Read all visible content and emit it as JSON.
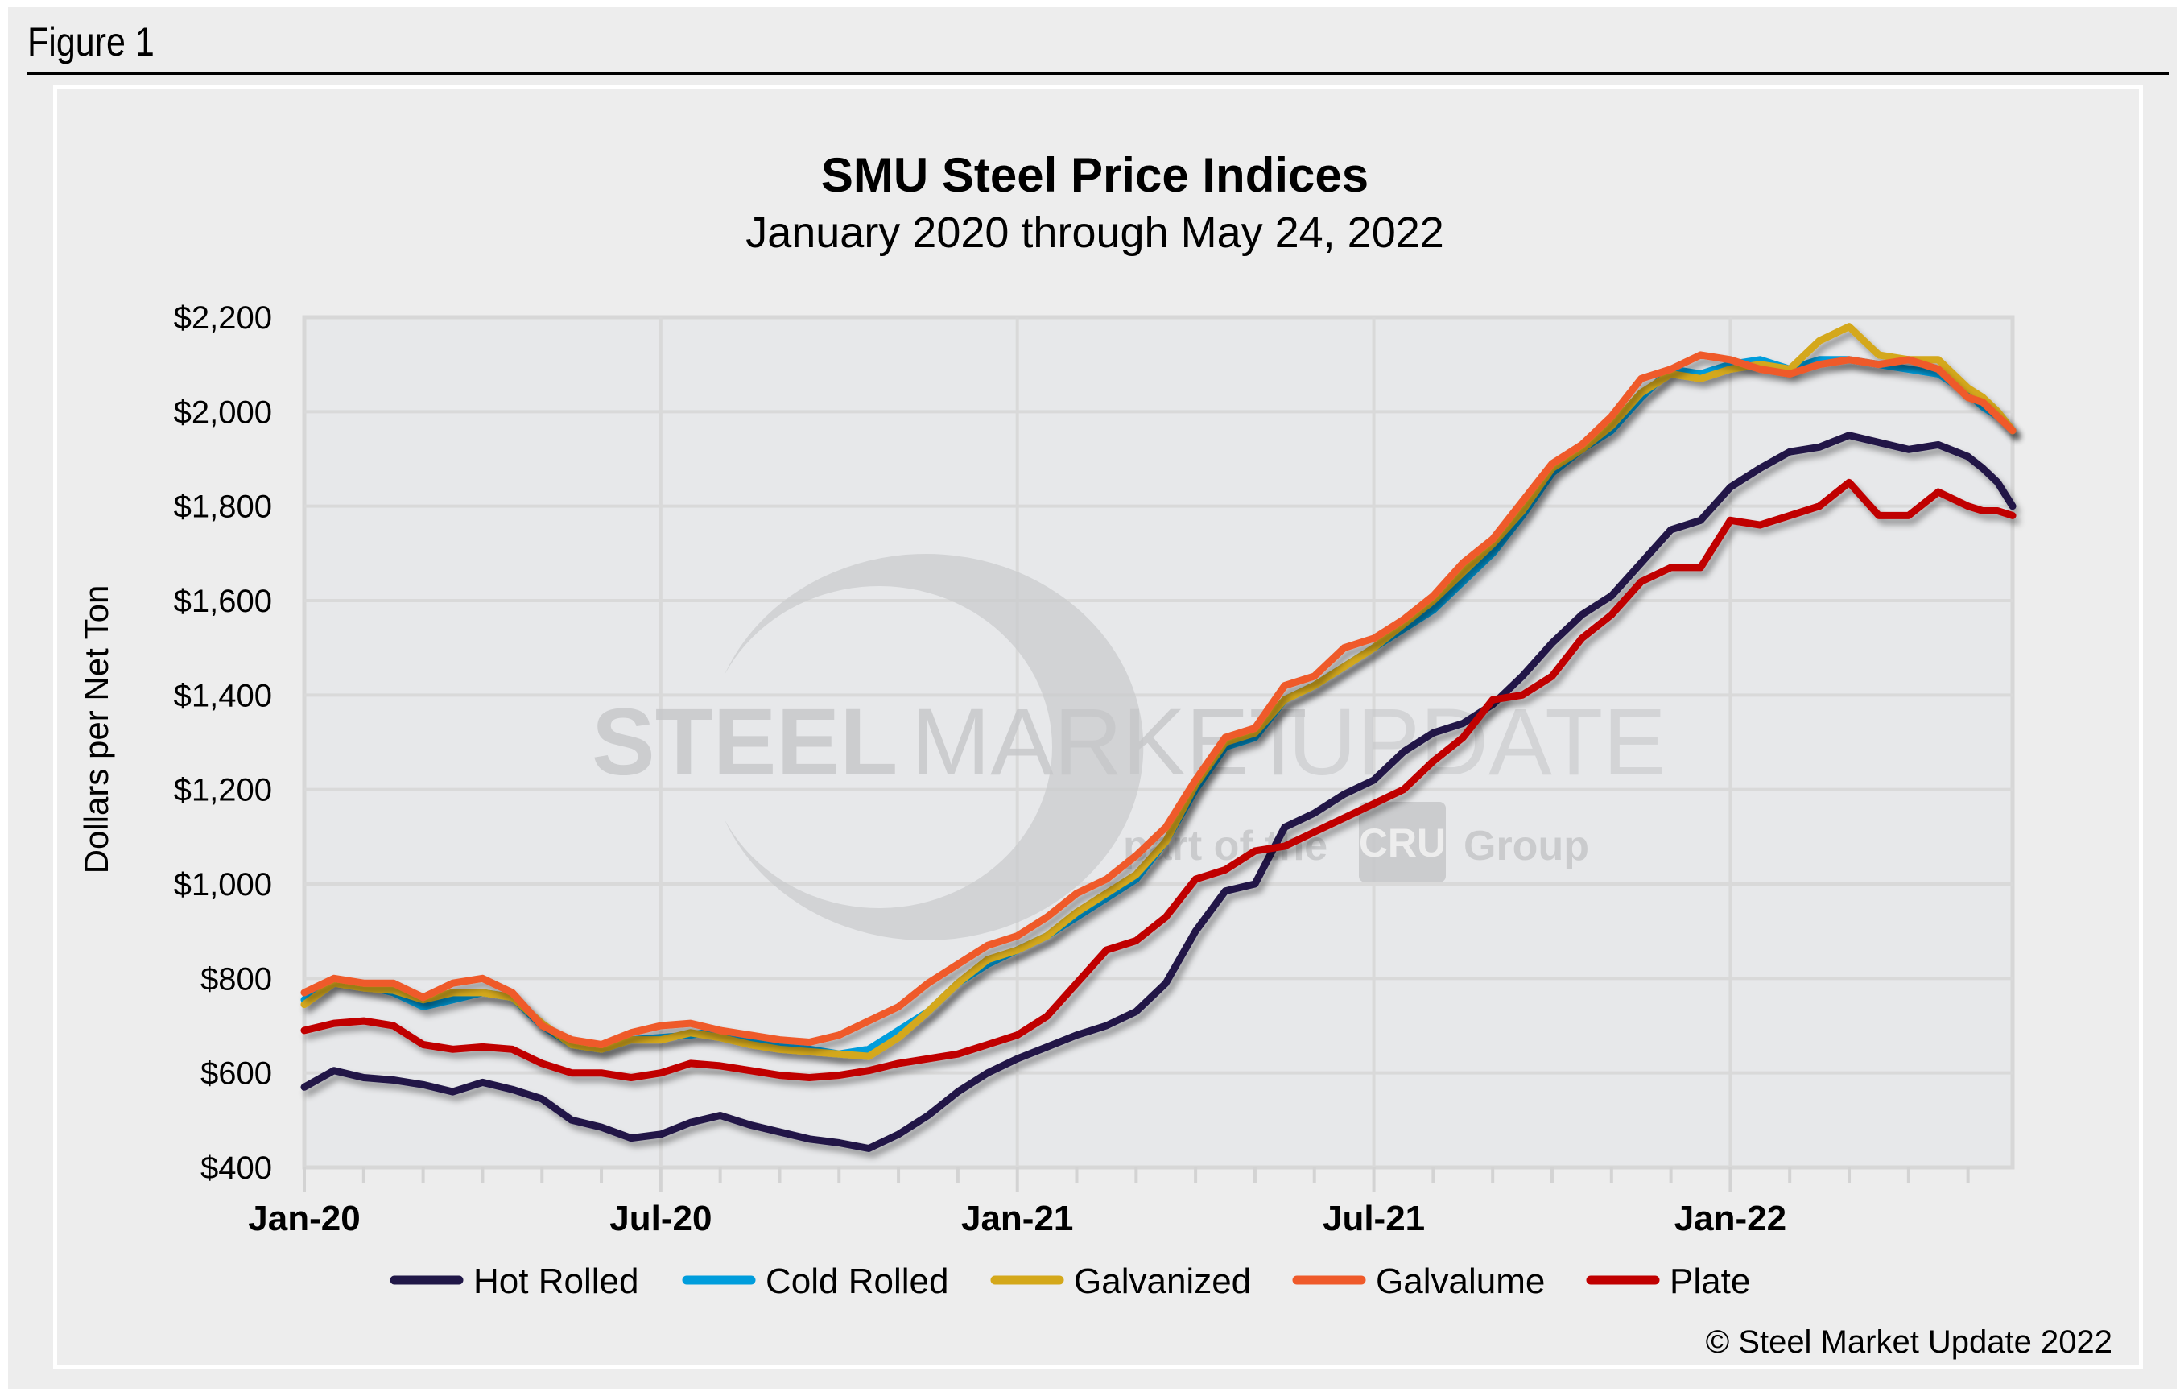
{
  "figure_label": "Figure 1",
  "watermark": {
    "brand_bold": "STEEL",
    "brand_mid": "MARKET",
    "brand_light": "UPDATE",
    "tagline_pre": "part of the",
    "tagline_logo": "CRU",
    "tagline_post": "Group"
  },
  "copyright": "© Steel Market Update 2022",
  "chart_data": {
    "type": "line",
    "title": "SMU Steel Price Indices",
    "subtitle": "January 2020 through May 24, 2022",
    "xlabel": "",
    "ylabel": "Dollars per Net Ton",
    "x_unit": "months since Jan 2020",
    "xlim": [
      0,
      28.75
    ],
    "ylim": [
      400,
      2200
    ],
    "y_ticks": [
      400,
      600,
      800,
      1000,
      1200,
      1400,
      1600,
      1800,
      2000,
      2200
    ],
    "y_tick_labels": [
      "$400",
      "$600",
      "$800",
      "$1,000",
      "$1,200",
      "$1,400",
      "$1,600",
      "$1,800",
      "$2,000",
      "$2,200"
    ],
    "x_major_ticks": [
      0,
      6,
      12,
      18,
      24
    ],
    "x_tick_labels": [
      "Jan-20",
      "Jul-20",
      "Jan-21",
      "Jul-21",
      "Jan-22"
    ],
    "x_minor_ticks": [
      1,
      2,
      3,
      4,
      5,
      7,
      8,
      9,
      10,
      11,
      13,
      14,
      15,
      16,
      17,
      19,
      20,
      21,
      22,
      23,
      25,
      26,
      27,
      28
    ],
    "grid": true,
    "legend_position": "bottom",
    "x": [
      0,
      0.5,
      1,
      1.5,
      2,
      2.5,
      3,
      3.5,
      4,
      4.5,
      5,
      5.5,
      6,
      6.5,
      7,
      7.5,
      8,
      8.5,
      9,
      9.5,
      10,
      10.5,
      11,
      11.5,
      12,
      12.5,
      13,
      13.5,
      14,
      14.5,
      15,
      15.5,
      16,
      16.5,
      17,
      17.5,
      18,
      18.5,
      19,
      19.5,
      20,
      20.5,
      21,
      21.5,
      22,
      22.5,
      23,
      23.5,
      24,
      24.5,
      25,
      25.5,
      26,
      26.5,
      27,
      27.5,
      28,
      28.25,
      28.5,
      28.75
    ],
    "series": [
      {
        "name": "Hot Rolled",
        "color": "#201747",
        "values": [
          570,
          605,
          590,
          585,
          575,
          560,
          580,
          565,
          545,
          500,
          485,
          462,
          470,
          495,
          510,
          490,
          475,
          460,
          452,
          440,
          470,
          510,
          560,
          600,
          630,
          655,
          680,
          700,
          730,
          790,
          900,
          985,
          1000,
          1120,
          1150,
          1190,
          1220,
          1280,
          1320,
          1340,
          1380,
          1440,
          1510,
          1570,
          1610,
          1680,
          1750,
          1770,
          1840,
          1880,
          1915,
          1925,
          1950,
          1935,
          1920,
          1930,
          1905,
          1880,
          1850,
          1800
        ]
      },
      {
        "name": "Cold Rolled",
        "color": "#009ddc",
        "values": [
          755,
          795,
          785,
          770,
          740,
          755,
          770,
          760,
          700,
          660,
          650,
          670,
          675,
          680,
          690,
          670,
          655,
          650,
          640,
          650,
          690,
          730,
          790,
          830,
          860,
          890,
          930,
          970,
          1010,
          1090,
          1200,
          1290,
          1310,
          1390,
          1420,
          1460,
          1500,
          1540,
          1580,
          1640,
          1700,
          1780,
          1870,
          1920,
          1960,
          2030,
          2090,
          2080,
          2100,
          2110,
          2090,
          2110,
          2110,
          2100,
          2090,
          2080,
          2040,
          2010,
          1990,
          1960
        ]
      },
      {
        "name": "Galvanized",
        "color": "#d4a81a",
        "values": [
          745,
          790,
          780,
          775,
          755,
          770,
          770,
          760,
          705,
          660,
          650,
          670,
          670,
          685,
          675,
          660,
          650,
          645,
          640,
          635,
          675,
          730,
          790,
          840,
          860,
          890,
          940,
          980,
          1020,
          1090,
          1210,
          1300,
          1320,
          1390,
          1420,
          1460,
          1500,
          1550,
          1600,
          1660,
          1720,
          1790,
          1880,
          1920,
          1970,
          2040,
          2080,
          2070,
          2090,
          2100,
          2090,
          2150,
          2180,
          2120,
          2110,
          2110,
          2050,
          2030,
          2000,
          1960
        ]
      },
      {
        "name": "Galvalume",
        "color": "#ef5a2a",
        "values": [
          770,
          800,
          790,
          790,
          760,
          790,
          800,
          770,
          700,
          670,
          660,
          685,
          700,
          705,
          690,
          680,
          670,
          665,
          680,
          710,
          740,
          790,
          830,
          870,
          890,
          930,
          980,
          1010,
          1060,
          1120,
          1220,
          1310,
          1330,
          1420,
          1440,
          1500,
          1520,
          1560,
          1610,
          1680,
          1730,
          1810,
          1890,
          1930,
          1990,
          2070,
          2090,
          2120,
          2110,
          2090,
          2080,
          2100,
          2110,
          2100,
          2110,
          2090,
          2030,
          2020,
          1990,
          1960
        ]
      },
      {
        "name": "Plate",
        "color": "#c00000",
        "values": [
          690,
          705,
          710,
          700,
          660,
          650,
          655,
          650,
          620,
          600,
          600,
          590,
          600,
          620,
          615,
          605,
          595,
          590,
          595,
          605,
          620,
          630,
          640,
          660,
          680,
          720,
          790,
          860,
          880,
          930,
          1010,
          1030,
          1070,
          1080,
          1110,
          1140,
          1170,
          1200,
          1260,
          1310,
          1390,
          1400,
          1440,
          1520,
          1570,
          1640,
          1670,
          1670,
          1770,
          1760,
          1780,
          1800,
          1850,
          1780,
          1780,
          1830,
          1800,
          1790,
          1790,
          1780
        ]
      }
    ]
  }
}
